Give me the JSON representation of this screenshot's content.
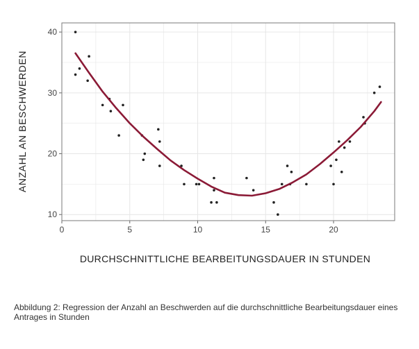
{
  "chart_data": {
    "type": "scatter",
    "xlabel": "DURCHSCHNITTLICHE BEARBEITUNGSDAUER IN STUNDEN",
    "ylabel": "ANZAHL AN BESCHWERDEN",
    "xlim": [
      0,
      24.5
    ],
    "ylim": [
      9,
      41.5
    ],
    "xticks": [
      0,
      5,
      10,
      15,
      20
    ],
    "yticks": [
      10,
      20,
      30,
      40
    ],
    "grid": true,
    "legend": "none",
    "colors": {
      "points": "#222222",
      "fit_line": "#8b1a36",
      "grid": "#e6e6e6",
      "frame": "#7a7a7a"
    },
    "series": [
      {
        "kind": "points",
        "x": [
          1.0,
          1.0,
          1.3,
          1.9,
          2.0,
          3.0,
          3.5,
          3.6,
          4.2,
          4.5,
          5.9,
          6.0,
          6.1,
          7.1,
          7.2,
          7.2,
          8.8,
          9.0,
          9.9,
          10.1,
          11.0,
          11.2,
          11.2,
          11.4,
          13.6,
          14.1,
          15.6,
          15.9,
          16.2,
          16.6,
          16.8,
          16.9,
          18.0,
          19.8,
          20.0,
          20.2,
          20.4,
          20.6,
          20.8,
          21.2,
          22.2,
          22.3,
          23.0,
          23.4
        ],
        "y": [
          40,
          33,
          34,
          32,
          36,
          28,
          29,
          27,
          23,
          28,
          23,
          19,
          20,
          24,
          22,
          18,
          18,
          15,
          15,
          15,
          12,
          14,
          16,
          12,
          16,
          14,
          12,
          10,
          15,
          18,
          15,
          17,
          15,
          18,
          15,
          19,
          22,
          17,
          21,
          22,
          26,
          25,
          30,
          31
        ]
      },
      {
        "kind": "fit_line",
        "x": [
          1,
          2,
          3,
          4,
          5,
          6,
          7,
          8,
          9,
          10,
          11,
          12,
          13,
          14,
          15,
          16,
          17,
          18,
          19,
          20,
          21,
          22,
          23,
          23.5
        ],
        "y": [
          36.5,
          33.3,
          30.2,
          27.5,
          25.0,
          22.8,
          20.8,
          18.9,
          17.3,
          15.9,
          14.6,
          13.6,
          13.2,
          13.1,
          13.5,
          14.2,
          15.3,
          16.6,
          18.3,
          20.2,
          22.2,
          24.4,
          27.0,
          28.5
        ]
      }
    ]
  },
  "caption": "Abbildung 2: Regression der Anzahl an Beschwerden auf die durchschnittliche Bearbeitungsdauer eines Antrages in Stunden"
}
